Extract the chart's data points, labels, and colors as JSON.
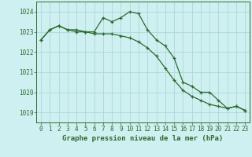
{
  "line1_x": [
    0,
    1,
    2,
    3,
    4,
    5,
    6,
    7,
    8,
    9,
    10,
    11,
    12,
    13,
    14,
    15,
    16,
    17,
    18,
    19,
    20,
    21,
    22,
    23
  ],
  "line1_y": [
    1022.6,
    1023.1,
    1023.3,
    1023.1,
    1023.0,
    1023.0,
    1023.0,
    1023.7,
    1023.5,
    1023.7,
    1024.0,
    1023.9,
    1023.1,
    1022.6,
    1022.3,
    1021.7,
    1020.5,
    1020.3,
    1020.0,
    1020.0,
    1019.6,
    1019.2,
    1019.3,
    1019.1
  ],
  "line2_x": [
    0,
    1,
    2,
    3,
    4,
    5,
    6,
    7,
    8,
    9,
    10,
    11,
    12,
    13,
    14,
    15,
    16,
    17,
    18,
    19,
    20,
    21,
    22,
    23
  ],
  "line2_y": [
    1022.6,
    1023.1,
    1023.3,
    1023.1,
    1023.1,
    1023.0,
    1022.9,
    1022.9,
    1022.9,
    1022.8,
    1022.7,
    1022.5,
    1022.2,
    1021.8,
    1021.2,
    1020.6,
    1020.1,
    1019.8,
    1019.6,
    1019.4,
    1019.3,
    1019.2,
    1019.3,
    1019.1
  ],
  "line_color": "#2d6a2d",
  "bg_color": "#cff0f0",
  "grid_color": "#aad8d8",
  "ylim": [
    1018.5,
    1024.5
  ],
  "xlim": [
    -0.5,
    23.5
  ],
  "yticks": [
    1019,
    1020,
    1021,
    1022,
    1023,
    1024
  ],
  "xticks": [
    0,
    1,
    2,
    3,
    4,
    5,
    6,
    7,
    8,
    9,
    10,
    11,
    12,
    13,
    14,
    15,
    16,
    17,
    18,
    19,
    20,
    21,
    22,
    23
  ],
  "xlabel": "Graphe pression niveau de la mer (hPa)",
  "tick_color": "#2d6a2d",
  "axis_color": "#2d6a2d",
  "tick_fontsize": 5.5,
  "xlabel_fontsize": 6.5
}
